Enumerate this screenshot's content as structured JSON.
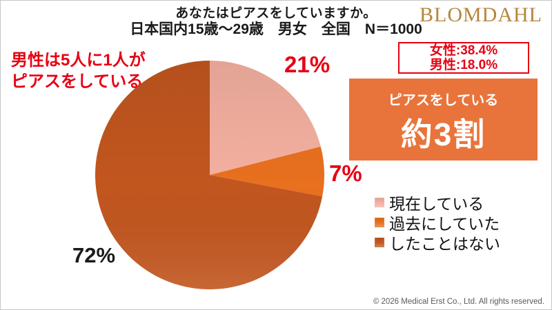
{
  "header": {
    "title": "あなたはピアスをしていますか。",
    "subtitle": "日本国内15歳～29歳　男女　全国　N＝1000"
  },
  "logo": {
    "text": "BLOMDAHL",
    "color": "#B6863C"
  },
  "stats_box": {
    "line1": "女性:38.4%",
    "line2": "男性:18.0%",
    "border_color": "#E60012",
    "text_color": "#E60012"
  },
  "highlight_box": {
    "caption": "ピアスをしている",
    "headline": "約3割",
    "bg_color": "#E8743B",
    "text_color": "#FFFFFF"
  },
  "annotation": {
    "line1": "男性は5人に1人が",
    "line2": "ピアスをしている",
    "color": "#E60012"
  },
  "chart_data": {
    "type": "pie",
    "title": "あなたはピアスをしていますか。",
    "subtitle": "日本国内15歳～29歳　男女　全国　N＝1000",
    "sample_size": "N＝1000",
    "start_angle_deg": 0,
    "direction": "clockwise",
    "legend_position": "right",
    "slices": [
      {
        "label": "現在している",
        "value": 21,
        "display": "21%",
        "color": "#F4B0A0",
        "value_label_color": "#E60012"
      },
      {
        "label": "過去にしていた",
        "value": 7,
        "display": "7%",
        "color": "#E8701F",
        "value_label_color": "#E60012"
      },
      {
        "label": "したことはない",
        "value": 72,
        "display": "72%",
        "color": "#C2561F",
        "value_label_color": "#1A1A1A"
      }
    ]
  },
  "footer": {
    "copyright": "© 2026 Medical Erst Co., Ltd. All rights reserved."
  }
}
